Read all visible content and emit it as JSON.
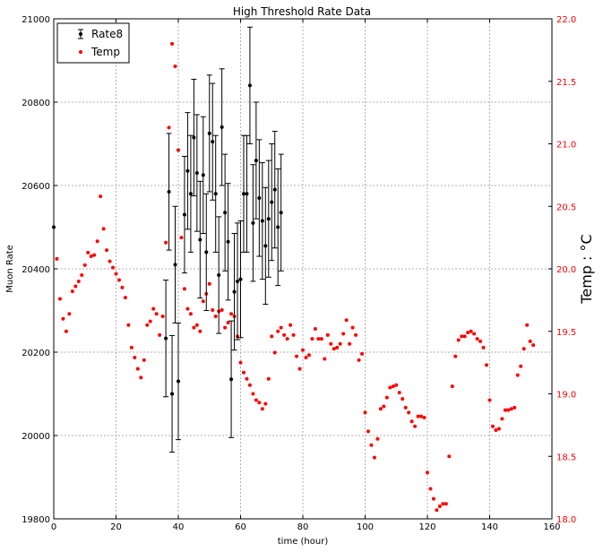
{
  "chart_data": {
    "type": "scatter",
    "title": "High Threshold Rate Data",
    "xlabel": "time (hour)",
    "ylabel": "Muon Rate",
    "y2label": "Temp : °C",
    "xlim": [
      0,
      160
    ],
    "ylim": [
      19800,
      21000
    ],
    "y2lim": [
      18.0,
      22.0
    ],
    "xticks": [
      "0",
      "20",
      "40",
      "60",
      "80",
      "100",
      "120",
      "140",
      "160"
    ],
    "yticks": [
      "19800",
      "20000",
      "20200",
      "20400",
      "20600",
      "20800",
      "21000"
    ],
    "y2ticks": [
      "18.0",
      "18.5",
      "19.0",
      "19.5",
      "20.0",
      "20.5",
      "21.0",
      "21.5",
      "22.0"
    ],
    "grid": true,
    "legend_position": "top-left",
    "series": [
      {
        "name": "Rate8",
        "axis": "left",
        "color": "#000000",
        "points": [
          [
            0,
            20500,
            0
          ],
          [
            36,
            20233,
            140
          ],
          [
            37,
            20585,
            140
          ],
          [
            38,
            20100,
            140
          ],
          [
            39,
            20410,
            140
          ],
          [
            40,
            20130,
            140
          ],
          [
            42,
            20530,
            140
          ],
          [
            43,
            20635,
            140
          ],
          [
            44,
            20580,
            140
          ],
          [
            45,
            20715,
            140
          ],
          [
            46,
            20630,
            140
          ],
          [
            47,
            20470,
            140
          ],
          [
            48,
            20625,
            140
          ],
          [
            49,
            20440,
            140
          ],
          [
            50,
            20725,
            140
          ],
          [
            51,
            20705,
            140
          ],
          [
            52,
            20580,
            140
          ],
          [
            53,
            20385,
            140
          ],
          [
            54,
            20740,
            140
          ],
          [
            55,
            20535,
            140
          ],
          [
            56,
            20465,
            140
          ],
          [
            57,
            20135,
            140
          ],
          [
            58,
            20345,
            140
          ],
          [
            59,
            20370,
            140
          ],
          [
            60,
            20375,
            140
          ],
          [
            61,
            20580,
            140
          ],
          [
            62,
            20580,
            140
          ],
          [
            63,
            20840,
            140
          ],
          [
            64,
            20510,
            140
          ],
          [
            65,
            20660,
            140
          ],
          [
            66,
            20570,
            140
          ],
          [
            67,
            20515,
            140
          ],
          [
            68,
            20455,
            140
          ],
          [
            69,
            20520,
            140
          ],
          [
            70,
            20560,
            140
          ],
          [
            71,
            20590,
            140
          ],
          [
            72,
            20500,
            140
          ],
          [
            73,
            20535,
            140
          ]
        ]
      },
      {
        "name": "Temp",
        "axis": "right",
        "color": "#ff0000",
        "points": [
          [
            1,
            20.08
          ],
          [
            2,
            19.76
          ],
          [
            3,
            19.6
          ],
          [
            4,
            19.5
          ],
          [
            5,
            19.64
          ],
          [
            6,
            19.82
          ],
          [
            7,
            19.86
          ],
          [
            8,
            19.9
          ],
          [
            9,
            19.95
          ],
          [
            10,
            20.03
          ],
          [
            11,
            20.13
          ],
          [
            12,
            20.1
          ],
          [
            13,
            20.11
          ],
          [
            14,
            20.22
          ],
          [
            15,
            20.58
          ],
          [
            16,
            20.32
          ],
          [
            17,
            20.15
          ],
          [
            18,
            20.06
          ],
          [
            19,
            20.01
          ],
          [
            20,
            19.96
          ],
          [
            21,
            19.91
          ],
          [
            22,
            19.85
          ],
          [
            23,
            19.77
          ],
          [
            24,
            19.55
          ],
          [
            25,
            19.37
          ],
          [
            26,
            19.29
          ],
          [
            27,
            19.2
          ],
          [
            28,
            19.13
          ],
          [
            29,
            19.27
          ],
          [
            30,
            19.55
          ],
          [
            31,
            19.58
          ],
          [
            32,
            19.68
          ],
          [
            33,
            19.64
          ],
          [
            34,
            19.47
          ],
          [
            35,
            19.62
          ],
          [
            36,
            20.21
          ],
          [
            37,
            21.13
          ],
          [
            38,
            21.8
          ],
          [
            39,
            21.62
          ],
          [
            40,
            20.95
          ],
          [
            41,
            20.25
          ],
          [
            42,
            19.84
          ],
          [
            43,
            19.68
          ],
          [
            44,
            19.64
          ],
          [
            45,
            19.53
          ],
          [
            46,
            19.55
          ],
          [
            47,
            19.5
          ],
          [
            48,
            19.74
          ],
          [
            49,
            19.8
          ],
          [
            50,
            19.88
          ],
          [
            51,
            19.67
          ],
          [
            52,
            19.62
          ],
          [
            53,
            19.66
          ],
          [
            54,
            19.67
          ],
          [
            55,
            19.53
          ],
          [
            56,
            19.57
          ],
          [
            57,
            19.64
          ],
          [
            58,
            19.62
          ],
          [
            59,
            19.46
          ],
          [
            60,
            19.25
          ],
          [
            61,
            19.17
          ],
          [
            62,
            19.12
          ],
          [
            63,
            19.07
          ],
          [
            64,
            19.0
          ],
          [
            65,
            18.95
          ],
          [
            66,
            18.93
          ],
          [
            67,
            18.88
          ],
          [
            68,
            18.92
          ],
          [
            69,
            19.12
          ],
          [
            70,
            19.46
          ],
          [
            71,
            19.33
          ],
          [
            72,
            19.5
          ],
          [
            73,
            19.53
          ],
          [
            74,
            19.47
          ],
          [
            75,
            19.44
          ],
          [
            76,
            19.55
          ],
          [
            77,
            19.47
          ],
          [
            78,
            19.3
          ],
          [
            79,
            19.2
          ],
          [
            80,
            19.35
          ],
          [
            81,
            19.29
          ],
          [
            82,
            19.31
          ],
          [
            83,
            19.44
          ],
          [
            84,
            19.52
          ],
          [
            85,
            19.44
          ],
          [
            86,
            19.44
          ],
          [
            87,
            19.28
          ],
          [
            88,
            19.47
          ],
          [
            89,
            19.4
          ],
          [
            90,
            19.36
          ],
          [
            91,
            19.37
          ],
          [
            92,
            19.4
          ],
          [
            93,
            19.48
          ],
          [
            94,
            19.59
          ],
          [
            95,
            19.4
          ],
          [
            96,
            19.53
          ],
          [
            97,
            19.47
          ],
          [
            98,
            19.27
          ],
          [
            99,
            19.32
          ],
          [
            100,
            18.85
          ],
          [
            101,
            18.7
          ],
          [
            102,
            18.59
          ],
          [
            103,
            18.49
          ],
          [
            104,
            18.64
          ],
          [
            105,
            18.88
          ],
          [
            106,
            18.9
          ],
          [
            107,
            18.97
          ],
          [
            108,
            19.05
          ],
          [
            109,
            19.06
          ],
          [
            110,
            19.07
          ],
          [
            111,
            19.01
          ],
          [
            112,
            18.96
          ],
          [
            113,
            18.89
          ],
          [
            114,
            18.85
          ],
          [
            115,
            18.78
          ],
          [
            116,
            18.74
          ],
          [
            117,
            18.82
          ],
          [
            118,
            18.82
          ],
          [
            119,
            18.81
          ],
          [
            120,
            18.37
          ],
          [
            121,
            18.24
          ],
          [
            122,
            18.16
          ],
          [
            123,
            18.07
          ],
          [
            124,
            18.1
          ],
          [
            125,
            18.12
          ],
          [
            126,
            18.12
          ],
          [
            127,
            18.5
          ],
          [
            128,
            19.06
          ],
          [
            129,
            19.3
          ],
          [
            130,
            19.43
          ],
          [
            131,
            19.46
          ],
          [
            132,
            19.46
          ],
          [
            133,
            19.49
          ],
          [
            134,
            19.5
          ],
          [
            135,
            19.48
          ],
          [
            136,
            19.44
          ],
          [
            137,
            19.42
          ],
          [
            138,
            19.37
          ],
          [
            139,
            19.23
          ],
          [
            140,
            18.95
          ],
          [
            141,
            18.74
          ],
          [
            142,
            18.71
          ],
          [
            143,
            18.72
          ],
          [
            144,
            18.8
          ],
          [
            145,
            18.87
          ],
          [
            146,
            18.87
          ],
          [
            147,
            18.88
          ],
          [
            148,
            18.89
          ],
          [
            149,
            19.15
          ],
          [
            150,
            19.22
          ],
          [
            151,
            19.36
          ],
          [
            152,
            19.55
          ],
          [
            153,
            19.42
          ],
          [
            154,
            19.39
          ]
        ]
      }
    ]
  }
}
